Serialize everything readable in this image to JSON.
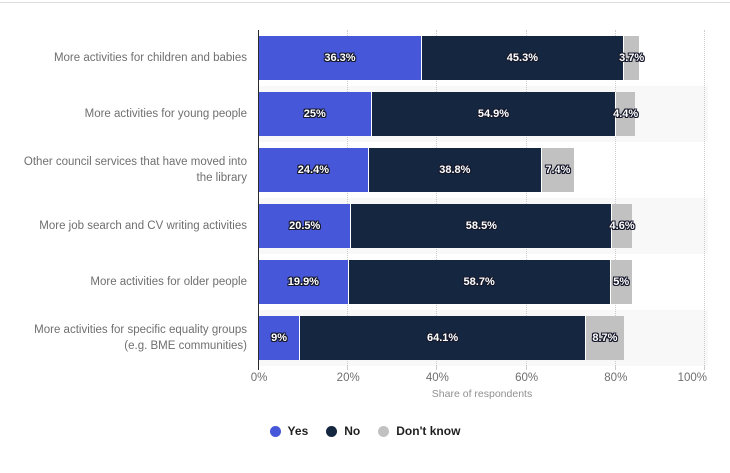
{
  "chart_data": {
    "type": "bar",
    "orientation": "horizontal",
    "stacked": true,
    "title": "",
    "xlabel": "Share of respondents",
    "ylabel": "",
    "xlim": [
      0,
      100
    ],
    "x_tick_labels": [
      "0%",
      "20%",
      "40%",
      "60%",
      "80%",
      "100%"
    ],
    "grid": "dotted vertical gridlines at each 20%",
    "plot_bands": "alternating category rows shaded light gray",
    "legend_position": "bottom",
    "categories": [
      "More activities for children and babies",
      "More activities for young people",
      "Other council services that have moved into the library",
      "More job search and CV writing activities",
      "More activities for older people",
      "More activities for specific equality groups (e.g. BME communities)"
    ],
    "series": [
      {
        "name": "Yes",
        "color": "#4757d9",
        "values": [
          36.3,
          25,
          24.4,
          20.5,
          19.9,
          9
        ],
        "labels": [
          "36.3%",
          "25%",
          "24.4%",
          "20.5%",
          "19.9%",
          "9%"
        ]
      },
      {
        "name": "No",
        "color": "#152640",
        "values": [
          45.3,
          54.9,
          38.8,
          58.5,
          58.7,
          64.1
        ],
        "labels": [
          "45.3%",
          "54.9%",
          "38.8%",
          "58.5%",
          "58.7%",
          "64.1%"
        ]
      },
      {
        "name": "Don't know",
        "color": "#c1c1c1",
        "values": [
          3.7,
          4.4,
          7.4,
          4.6,
          5,
          8.7
        ],
        "labels": [
          "3.7%",
          "4.4%",
          "7.4%",
          "4.6%",
          "5%",
          "8.7%"
        ]
      }
    ]
  },
  "style": {
    "stripe_color": "#f8f8f8",
    "gridline_color": "#cccccc",
    "axis_line_color": "#2a2a2a",
    "category_label_color": "#6f6f6f",
    "tick_label_color": "#6f6f6f",
    "axis_title_color": "#909090",
    "legend_text_color": "#1f1f1f",
    "value_label_color": "#ffffff"
  }
}
